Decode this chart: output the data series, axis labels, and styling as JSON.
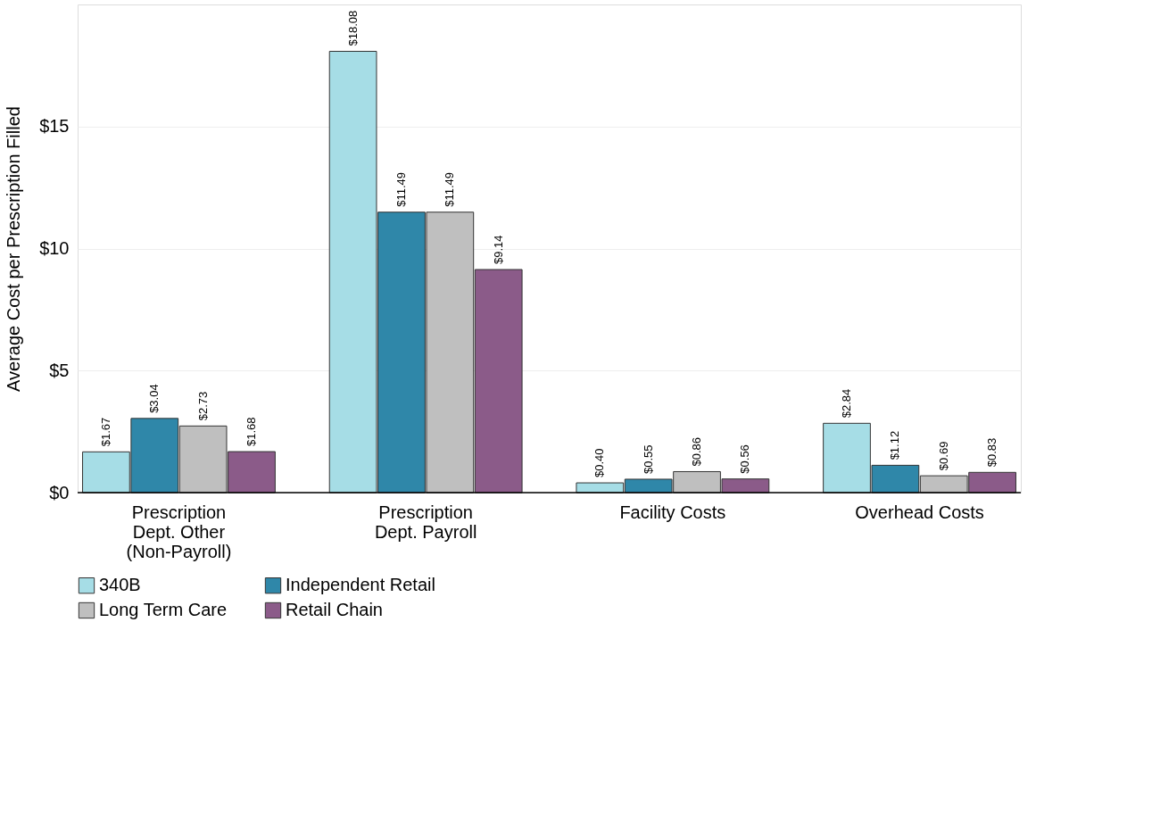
{
  "chart_data": {
    "type": "bar",
    "ylabel": "Average Cost per Prescription Filled",
    "categories": [
      "Prescription Dept. Other (Non-Payroll)",
      "Prescription Dept. Payroll",
      "Facility Costs",
      "Overhead Costs"
    ],
    "series": [
      {
        "name": "340B",
        "color": "#a6dde6",
        "values": [
          1.67,
          18.08,
          0.4,
          2.84
        ],
        "value_labels": [
          "$1.67",
          "$18.08",
          "$0.40",
          "$2.84"
        ]
      },
      {
        "name": "Independent Retail",
        "color": "#2f87a9",
        "values": [
          3.04,
          11.49,
          0.55,
          1.12
        ],
        "value_labels": [
          "$3.04",
          "$11.49",
          "$0.55",
          "$1.12"
        ]
      },
      {
        "name": "Long Term Care",
        "color": "#bfbfbf",
        "values": [
          2.73,
          11.49,
          0.86,
          0.69
        ],
        "value_labels": [
          "$2.73",
          "$11.49",
          "$0.86",
          "$0.69"
        ]
      },
      {
        "name": "Retail Chain",
        "color": "#8b5b89",
        "values": [
          1.68,
          9.14,
          0.56,
          0.83
        ],
        "value_labels": [
          "$1.68",
          "$9.14",
          "$0.56",
          "$0.83"
        ]
      }
    ],
    "ylim": [
      0,
      20
    ],
    "yticks": [
      {
        "value": 0,
        "label": "$0"
      },
      {
        "value": 5,
        "label": "$5"
      },
      {
        "value": 10,
        "label": "$10"
      },
      {
        "value": 15,
        "label": "$15"
      }
    ],
    "grid": "y",
    "legend": "bottom"
  }
}
